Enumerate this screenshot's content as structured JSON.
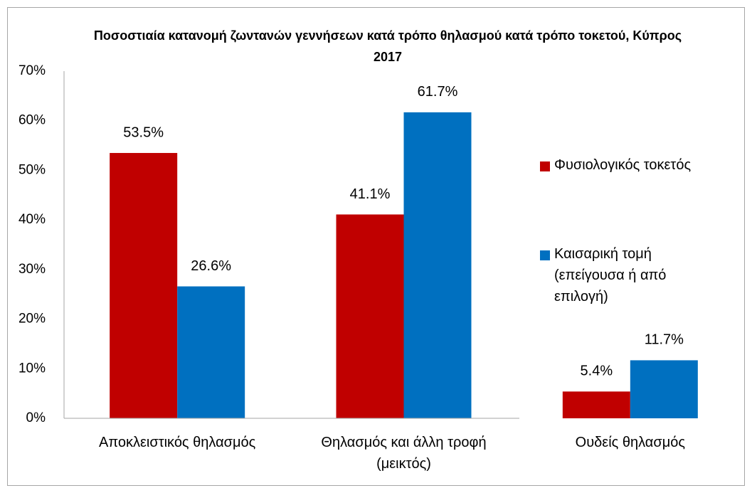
{
  "chart_data": {
    "type": "bar",
    "title": "Ποσοστιαία κατανομή ζωντανών γεννήσεων κατά τρόπο θηλασμού κατά τρόπο τοκετού, Κύπρος 2017",
    "categories": [
      "Αποκλειστικός θηλασμός",
      "Θηλασμός και άλλη τροφή (μεικτός)",
      "Ουδείς θηλασμός"
    ],
    "series": [
      {
        "name": "Φυσιολογικός τοκετός",
        "color": "#c00000",
        "values": [
          53.5,
          41.1,
          5.4
        ],
        "value_labels": [
          "53.5%",
          "41.1%",
          "5.4%"
        ]
      },
      {
        "name": "Καισαρική τομή (επείγουσα ή από επιλογή)",
        "color": "#0070c0",
        "values": [
          26.6,
          61.7,
          11.7
        ],
        "value_labels": [
          "26.6%",
          "61.7%",
          "11.7%"
        ]
      }
    ],
    "ylim": [
      0,
      70
    ],
    "yticks": [
      {
        "value": 0,
        "label": "0%"
      },
      {
        "value": 10,
        "label": "10%"
      },
      {
        "value": 20,
        "label": "20%"
      },
      {
        "value": 30,
        "label": "30%"
      },
      {
        "value": 40,
        "label": "40%"
      },
      {
        "value": 50,
        "label": "50%"
      },
      {
        "value": 60,
        "label": "60%"
      },
      {
        "value": 70,
        "label": "70%"
      }
    ],
    "grid": false,
    "legend": "right"
  }
}
